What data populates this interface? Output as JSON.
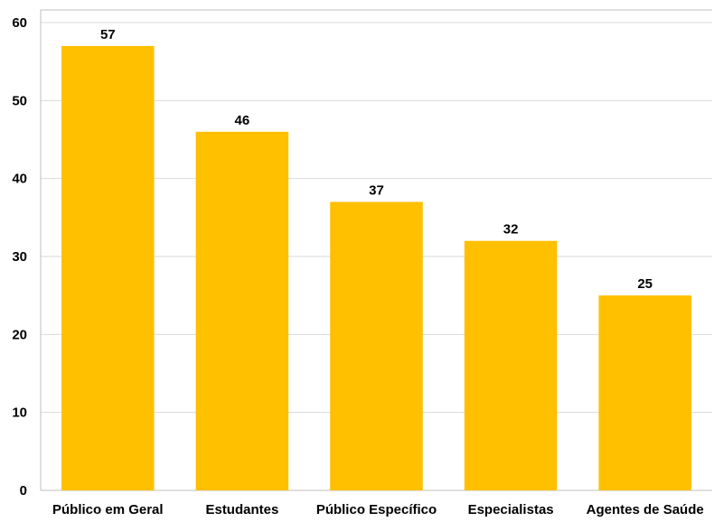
{
  "chart_data": {
    "type": "bar",
    "title": "",
    "xlabel": "",
    "ylabel": "",
    "categories": [
      "Público em Geral",
      "Estudantes",
      "Público Específico",
      "Especialistas",
      "Agentes de Saúde"
    ],
    "values": [
      57,
      46,
      37,
      32,
      25
    ],
    "data_labels": [
      "57",
      "46",
      "37",
      "32",
      "25"
    ],
    "ylim": [
      0,
      60
    ],
    "yticks": [
      0,
      10,
      20,
      30,
      40,
      50,
      60
    ],
    "ytick_labels": [
      "0",
      "10",
      "20",
      "30",
      "40",
      "50",
      "60"
    ],
    "grid": true,
    "legend": "none",
    "colors": {
      "bar": "#FFC000",
      "grid": "#D9D9D9",
      "axis": "#BFBFBF",
      "text": "#000000"
    }
  }
}
